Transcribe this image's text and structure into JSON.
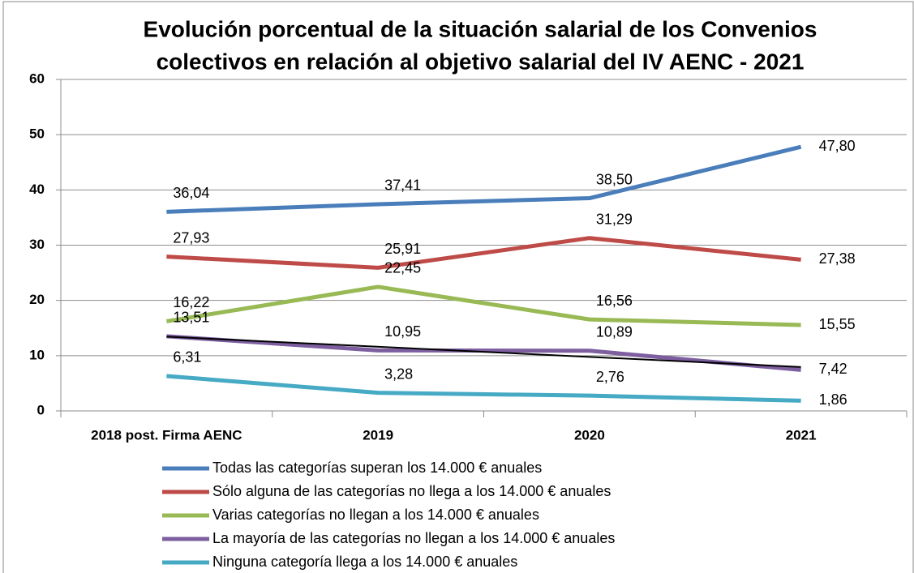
{
  "chart_data": {
    "type": "line",
    "title": [
      "Evolución porcentual  de la situación salarial de los  Convenios",
      "colectivos en relación al objetivo salarial del IV AENC - 2021"
    ],
    "categories": [
      "2018 post. Firma AENC",
      "2019",
      "2020",
      "2021"
    ],
    "series": [
      {
        "name": "Todas las categorías superan los 14.000 € anuales",
        "color": "#4a7ebb",
        "values": [
          36.04,
          37.41,
          38.5,
          47.8
        ],
        "value_labels": [
          "36,04",
          "37,41",
          "38,50",
          "47,80"
        ]
      },
      {
        "name": "Sólo alguna de las categorías no llega a los 14.000 € anuales",
        "color": "#be4b48",
        "values": [
          27.93,
          25.91,
          31.29,
          27.38
        ],
        "value_labels": [
          "27,93",
          "25,91",
          "31,29",
          "27,38"
        ]
      },
      {
        "name": "Varias categorías no llegan a los 14.000 € anuales",
        "color": "#98b954",
        "values": [
          16.22,
          22.45,
          16.56,
          15.55
        ],
        "value_labels": [
          "16,22",
          "22,45",
          "16,56",
          "15,55"
        ]
      },
      {
        "name": "La mayoría de las categorías no llegan a los 14.000 € anuales",
        "color": "#7d5fa0",
        "values": [
          13.51,
          10.95,
          10.89,
          7.42
        ],
        "value_labels": [
          "13,51",
          "10,95",
          "10,89",
          "7,42"
        ],
        "trendline": true
      },
      {
        "name": "Ninguna categoría llega a los 14.000 € anuales",
        "color": "#46aac5",
        "values": [
          6.31,
          3.28,
          2.76,
          1.86
        ],
        "value_labels": [
          "6,31",
          "3,28",
          "2,76",
          "1,86"
        ]
      }
    ],
    "ylim": [
      0,
      60
    ],
    "yticks": [
      0,
      10,
      20,
      30,
      40,
      50,
      60
    ],
    "grid": true
  }
}
